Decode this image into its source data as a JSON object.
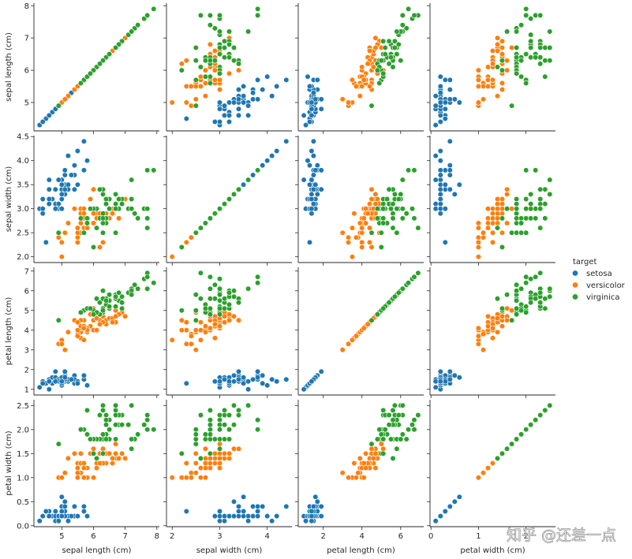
{
  "chart_data": {
    "type": "scatter",
    "title": "",
    "variables": [
      "sepal length (cm)",
      "sepal width (cm)",
      "petal length (cm)",
      "petal width (cm)"
    ],
    "axis_ranges": [
      [
        4.12,
        8.08
      ],
      [
        1.88,
        4.52
      ],
      [
        0.71,
        7.19
      ],
      [
        -0.02,
        2.62
      ]
    ],
    "ticks": [
      [
        5,
        6,
        7,
        8
      ],
      [
        2.0,
        2.5,
        3.0,
        3.5,
        4.0,
        4.5
      ],
      [
        1,
        2,
        3,
        4,
        5,
        6,
        7
      ],
      [
        0.0,
        0.5,
        1.0,
        1.5,
        2.0,
        2.5
      ]
    ],
    "x_tick_labels": [
      [
        "5",
        "6",
        "7",
        "8"
      ],
      [
        "2",
        "3",
        "4"
      ],
      [
        "2",
        "4",
        "6"
      ],
      [
        "0",
        "1",
        "2"
      ]
    ],
    "x_ticks": [
      [
        5,
        6,
        7,
        8
      ],
      [
        2,
        3,
        4
      ],
      [
        2,
        4,
        6
      ],
      [
        0,
        1,
        2
      ]
    ],
    "y_tick_labels": [
      [
        "5",
        "6",
        "7",
        "8"
      ],
      [
        "2.0",
        "2.5",
        "3.0",
        "3.5",
        "4.0",
        "4.5"
      ],
      [
        "1",
        "2",
        "3",
        "4",
        "5",
        "6",
        "7"
      ],
      [
        "0.0",
        "0.5",
        "1.0",
        "1.5",
        "2.0",
        "2.5"
      ]
    ],
    "grid": false,
    "legend": {
      "title": "target",
      "placement": "right",
      "entries": [
        {
          "name": "setosa",
          "color": "#1f77b4"
        },
        {
          "name": "versicolor",
          "color": "#ff7f0e"
        },
        {
          "name": "virginica",
          "color": "#2ca02c"
        }
      ]
    },
    "series": [
      {
        "name": "setosa",
        "color": "#1f77b4",
        "points": [
          [
            5.1,
            3.5,
            1.4,
            0.2
          ],
          [
            4.9,
            3.0,
            1.4,
            0.2
          ],
          [
            4.7,
            3.2,
            1.3,
            0.2
          ],
          [
            4.6,
            3.1,
            1.5,
            0.2
          ],
          [
            5.0,
            3.6,
            1.4,
            0.2
          ],
          [
            5.4,
            3.9,
            1.7,
            0.4
          ],
          [
            4.6,
            3.4,
            1.4,
            0.3
          ],
          [
            5.0,
            3.4,
            1.5,
            0.2
          ],
          [
            4.4,
            2.9,
            1.4,
            0.2
          ],
          [
            4.9,
            3.1,
            1.5,
            0.1
          ],
          [
            5.4,
            3.7,
            1.5,
            0.2
          ],
          [
            4.8,
            3.4,
            1.6,
            0.2
          ],
          [
            4.8,
            3.0,
            1.4,
            0.1
          ],
          [
            4.3,
            3.0,
            1.1,
            0.1
          ],
          [
            5.8,
            4.0,
            1.2,
            0.2
          ],
          [
            5.7,
            4.4,
            1.5,
            0.4
          ],
          [
            5.4,
            3.9,
            1.3,
            0.4
          ],
          [
            5.1,
            3.5,
            1.4,
            0.3
          ],
          [
            5.7,
            3.8,
            1.7,
            0.3
          ],
          [
            5.1,
            3.8,
            1.5,
            0.3
          ],
          [
            5.4,
            3.4,
            1.7,
            0.2
          ],
          [
            5.1,
            3.7,
            1.5,
            0.4
          ],
          [
            4.6,
            3.6,
            1.0,
            0.2
          ],
          [
            5.1,
            3.3,
            1.7,
            0.5
          ],
          [
            4.8,
            3.4,
            1.9,
            0.2
          ],
          [
            5.0,
            3.0,
            1.6,
            0.2
          ],
          [
            5.0,
            3.4,
            1.6,
            0.4
          ],
          [
            5.2,
            3.5,
            1.5,
            0.2
          ],
          [
            5.2,
            3.4,
            1.4,
            0.2
          ],
          [
            4.7,
            3.2,
            1.6,
            0.2
          ],
          [
            4.8,
            3.1,
            1.6,
            0.2
          ],
          [
            5.4,
            3.4,
            1.5,
            0.4
          ],
          [
            5.2,
            4.1,
            1.5,
            0.1
          ],
          [
            5.5,
            4.2,
            1.4,
            0.2
          ],
          [
            4.9,
            3.1,
            1.5,
            0.2
          ],
          [
            5.0,
            3.2,
            1.2,
            0.2
          ],
          [
            5.5,
            3.5,
            1.3,
            0.2
          ],
          [
            4.9,
            3.6,
            1.4,
            0.1
          ],
          [
            4.4,
            3.0,
            1.3,
            0.2
          ],
          [
            5.1,
            3.4,
            1.5,
            0.2
          ],
          [
            5.0,
            3.5,
            1.3,
            0.3
          ],
          [
            4.5,
            2.3,
            1.3,
            0.3
          ],
          [
            4.4,
            3.2,
            1.3,
            0.2
          ],
          [
            5.0,
            3.5,
            1.6,
            0.6
          ],
          [
            5.1,
            3.8,
            1.9,
            0.4
          ],
          [
            4.8,
            3.0,
            1.4,
            0.3
          ],
          [
            5.1,
            3.8,
            1.6,
            0.2
          ],
          [
            4.6,
            3.2,
            1.4,
            0.2
          ],
          [
            5.3,
            3.7,
            1.5,
            0.2
          ],
          [
            5.0,
            3.3,
            1.4,
            0.2
          ]
        ]
      },
      {
        "name": "versicolor",
        "color": "#ff7f0e",
        "points": [
          [
            7.0,
            3.2,
            4.7,
            1.4
          ],
          [
            6.4,
            3.2,
            4.5,
            1.5
          ],
          [
            6.9,
            3.1,
            4.9,
            1.5
          ],
          [
            5.5,
            2.3,
            4.0,
            1.3
          ],
          [
            6.5,
            2.8,
            4.6,
            1.5
          ],
          [
            5.7,
            2.8,
            4.5,
            1.3
          ],
          [
            6.3,
            3.3,
            4.7,
            1.6
          ],
          [
            4.9,
            2.4,
            3.3,
            1.0
          ],
          [
            6.6,
            2.9,
            4.6,
            1.3
          ],
          [
            5.2,
            2.7,
            3.9,
            1.4
          ],
          [
            5.0,
            2.0,
            3.5,
            1.0
          ],
          [
            5.9,
            3.0,
            4.2,
            1.5
          ],
          [
            6.0,
            2.2,
            4.0,
            1.0
          ],
          [
            6.1,
            2.9,
            4.7,
            1.4
          ],
          [
            5.6,
            2.9,
            3.6,
            1.3
          ],
          [
            6.7,
            3.1,
            4.4,
            1.4
          ],
          [
            5.6,
            3.0,
            4.5,
            1.5
          ],
          [
            5.8,
            2.7,
            4.1,
            1.0
          ],
          [
            6.2,
            2.2,
            4.5,
            1.5
          ],
          [
            5.6,
            2.5,
            3.9,
            1.1
          ],
          [
            5.9,
            3.2,
            4.8,
            1.8
          ],
          [
            6.1,
            2.8,
            4.0,
            1.3
          ],
          [
            6.3,
            2.5,
            4.9,
            1.5
          ],
          [
            6.1,
            2.8,
            4.7,
            1.2
          ],
          [
            6.4,
            2.9,
            4.3,
            1.3
          ],
          [
            6.6,
            3.0,
            4.4,
            1.4
          ],
          [
            6.8,
            2.8,
            4.8,
            1.4
          ],
          [
            6.7,
            3.0,
            5.0,
            1.7
          ],
          [
            6.0,
            2.9,
            4.5,
            1.5
          ],
          [
            5.7,
            2.6,
            3.5,
            1.0
          ],
          [
            5.5,
            2.4,
            3.8,
            1.1
          ],
          [
            5.5,
            2.4,
            3.7,
            1.0
          ],
          [
            5.8,
            2.7,
            3.9,
            1.2
          ],
          [
            6.0,
            2.7,
            5.1,
            1.6
          ],
          [
            5.4,
            3.0,
            4.5,
            1.5
          ],
          [
            6.0,
            3.4,
            4.5,
            1.6
          ],
          [
            6.7,
            3.1,
            4.7,
            1.5
          ],
          [
            6.3,
            2.3,
            4.4,
            1.3
          ],
          [
            5.6,
            3.0,
            4.1,
            1.3
          ],
          [
            5.5,
            2.5,
            4.0,
            1.3
          ],
          [
            5.5,
            2.6,
            4.4,
            1.2
          ],
          [
            6.1,
            3.0,
            4.6,
            1.4
          ],
          [
            5.8,
            2.6,
            4.0,
            1.2
          ],
          [
            5.0,
            2.3,
            3.3,
            1.0
          ],
          [
            5.6,
            2.7,
            4.2,
            1.3
          ],
          [
            5.7,
            3.0,
            4.2,
            1.2
          ],
          [
            5.7,
            2.9,
            4.2,
            1.3
          ],
          [
            6.2,
            2.9,
            4.3,
            1.3
          ],
          [
            5.1,
            2.5,
            3.0,
            1.1
          ],
          [
            5.7,
            2.8,
            4.1,
            1.3
          ]
        ]
      },
      {
        "name": "virginica",
        "color": "#2ca02c",
        "points": [
          [
            6.3,
            3.3,
            6.0,
            2.5
          ],
          [
            5.8,
            2.7,
            5.1,
            1.9
          ],
          [
            7.1,
            3.0,
            5.9,
            2.1
          ],
          [
            6.3,
            2.9,
            5.6,
            1.8
          ],
          [
            6.5,
            3.0,
            5.8,
            2.2
          ],
          [
            7.6,
            3.0,
            6.6,
            2.1
          ],
          [
            4.9,
            2.5,
            4.5,
            1.7
          ],
          [
            7.3,
            2.9,
            6.3,
            1.8
          ],
          [
            6.7,
            2.5,
            5.8,
            1.8
          ],
          [
            7.2,
            3.6,
            6.1,
            2.5
          ],
          [
            6.5,
            3.2,
            5.1,
            2.0
          ],
          [
            6.4,
            2.7,
            5.3,
            1.9
          ],
          [
            6.8,
            3.0,
            5.5,
            2.1
          ],
          [
            5.7,
            2.5,
            5.0,
            2.0
          ],
          [
            5.8,
            2.8,
            5.1,
            2.4
          ],
          [
            6.4,
            3.2,
            5.3,
            2.3
          ],
          [
            6.5,
            3.0,
            5.5,
            1.8
          ],
          [
            7.7,
            3.8,
            6.7,
            2.2
          ],
          [
            7.7,
            2.6,
            6.9,
            2.3
          ],
          [
            6.0,
            2.2,
            5.0,
            1.5
          ],
          [
            6.9,
            3.2,
            5.7,
            2.3
          ],
          [
            5.6,
            2.8,
            4.9,
            2.0
          ],
          [
            7.7,
            2.8,
            6.7,
            2.0
          ],
          [
            6.3,
            2.7,
            4.9,
            1.8
          ],
          [
            6.7,
            3.3,
            5.7,
            2.1
          ],
          [
            7.2,
            3.2,
            6.0,
            1.8
          ],
          [
            6.2,
            2.8,
            4.8,
            1.8
          ],
          [
            6.1,
            3.0,
            4.9,
            1.8
          ],
          [
            6.4,
            2.8,
            5.6,
            2.1
          ],
          [
            7.2,
            3.0,
            5.8,
            1.6
          ],
          [
            7.4,
            2.8,
            6.1,
            1.9
          ],
          [
            7.9,
            3.8,
            6.4,
            2.0
          ],
          [
            6.4,
            2.8,
            5.6,
            2.2
          ],
          [
            6.3,
            2.8,
            5.1,
            1.5
          ],
          [
            6.1,
            2.6,
            5.6,
            1.4
          ],
          [
            7.7,
            3.0,
            6.1,
            2.3
          ],
          [
            6.3,
            3.4,
            5.6,
            2.4
          ],
          [
            6.4,
            3.1,
            5.5,
            1.8
          ],
          [
            6.0,
            3.0,
            4.8,
            1.8
          ],
          [
            6.9,
            3.1,
            5.4,
            2.1
          ],
          [
            6.7,
            3.1,
            5.6,
            2.4
          ],
          [
            6.9,
            3.1,
            5.1,
            2.3
          ],
          [
            5.8,
            2.7,
            5.1,
            1.9
          ],
          [
            6.8,
            3.2,
            5.9,
            2.3
          ],
          [
            6.7,
            3.3,
            5.7,
            2.5
          ],
          [
            6.7,
            3.0,
            5.2,
            2.3
          ],
          [
            6.3,
            2.5,
            5.0,
            1.9
          ],
          [
            6.5,
            3.0,
            5.2,
            2.0
          ],
          [
            6.2,
            3.4,
            5.4,
            2.3
          ],
          [
            5.9,
            3.0,
            5.1,
            1.8
          ]
        ]
      }
    ]
  },
  "watermark": {
    "text": "知乎 @还差一点"
  }
}
